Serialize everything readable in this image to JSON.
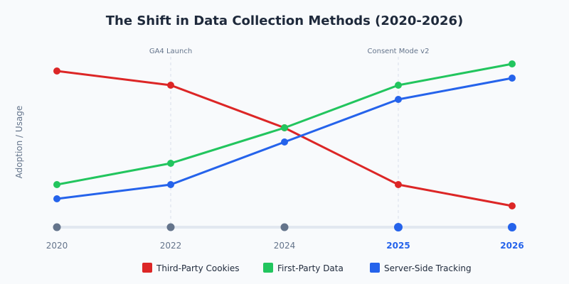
{
  "chart_data": {
    "type": "line",
    "title": "The Shift in Data Collection Methods (2020-2026)",
    "xlabel": "",
    "ylabel": "Adoption / Usage",
    "ylim": [
      0,
      100
    ],
    "grid": false,
    "legend_position": "bottom",
    "categories": [
      "2020",
      "2022",
      "2024",
      "2025",
      "2026"
    ],
    "highlighted_categories": [
      "2025",
      "2026"
    ],
    "series": [
      {
        "name": "Third-Party Cookies",
        "color": "#dc2626",
        "values": [
          88,
          80,
          56,
          24,
          12
        ]
      },
      {
        "name": "First-Party Data",
        "color": "#22c55e",
        "values": [
          24,
          36,
          56,
          80,
          92
        ]
      },
      {
        "name": "Server-Side Tracking",
        "color": "#2563eb",
        "values": [
          16,
          24,
          48,
          72,
          84
        ]
      }
    ],
    "annotations": [
      {
        "category": "2022",
        "label": "GA4 Launch"
      },
      {
        "category": "2025",
        "label": "Consent Mode v2"
      }
    ],
    "colors": {
      "timeline_past": "#64748b",
      "timeline_highlight": "#2563eb",
      "axis_line": "#e2e8f0",
      "text": "#1e293b",
      "muted": "#64748b"
    }
  }
}
